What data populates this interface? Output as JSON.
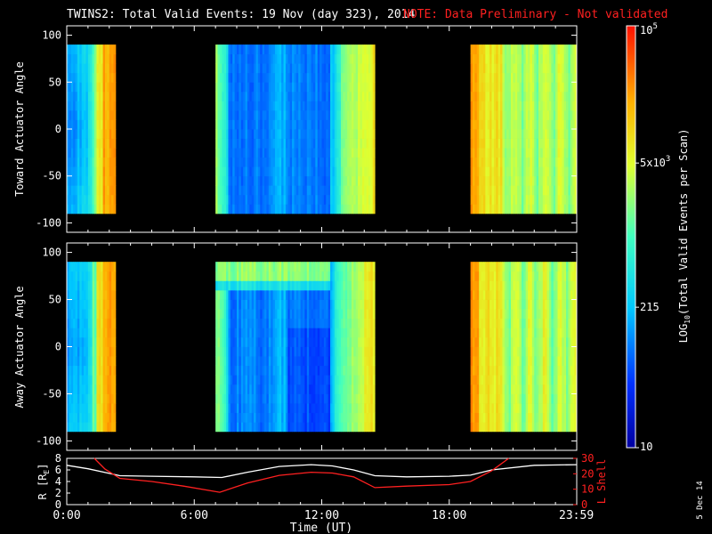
{
  "header": {
    "title": "TWINS2: Total Valid Events: 19 Nov (day 323), 2014",
    "note": "NOTE: Data Preliminary - Not validated",
    "note_color": "#ff2020"
  },
  "footer": {
    "date_stamp": "5 Dec 14"
  },
  "chart_data": [
    {
      "type": "heatmap",
      "name": "toward-panel",
      "ylabel": "Toward Actuator Angle",
      "ylim": [
        -110,
        110
      ],
      "yticks": [
        100,
        50,
        0,
        -50,
        -100
      ],
      "xlim": [
        0,
        24
      ],
      "data_angle_range": [
        -90,
        90
      ],
      "coverage_hours": [
        [
          0.0,
          2.3
        ],
        [
          7.0,
          14.5
        ],
        [
          19.0,
          24.0
        ]
      ],
      "background": "#000000"
    },
    {
      "type": "heatmap",
      "name": "away-panel",
      "ylabel": "Away Actuator Angle",
      "ylim": [
        -110,
        110
      ],
      "yticks": [
        100,
        50,
        0,
        -50,
        -100
      ],
      "xlim": [
        0,
        24
      ],
      "data_angle_range": [
        -90,
        90
      ],
      "coverage_hours": [
        [
          0.0,
          2.3
        ],
        [
          7.0,
          14.5
        ],
        [
          19.0,
          24.0
        ]
      ],
      "background": "#000000"
    },
    {
      "type": "line",
      "name": "orbit-panel",
      "ylabel_left": "R [R",
      "ylabel_left_sub": "E",
      "ylabel_left_close": "]",
      "ylabel_right": "L Shell",
      "ylim_left": [
        0,
        8
      ],
      "ylim_right": [
        0,
        30
      ],
      "yticks_left": [
        8,
        6,
        4,
        2,
        0
      ],
      "yticks_right": [
        30,
        20,
        10,
        0
      ],
      "xlabel": "Time (UT)",
      "xticks": [
        {
          "value": 0,
          "label": "0:00"
        },
        {
          "value": 6,
          "label": "6:00"
        },
        {
          "value": 12,
          "label": "12:00"
        },
        {
          "value": 18,
          "label": "18:00"
        },
        {
          "value": 23.983,
          "label": "23:59"
        }
      ],
      "series": [
        {
          "color": "#ffffff",
          "axis": "left",
          "x": [
            0,
            1,
            2,
            2.5,
            4,
            6,
            7.3,
            8.5,
            10,
            11.5,
            12.5,
            13.5,
            14.5,
            16,
            18,
            19,
            20,
            22,
            24
          ],
          "y": [
            6.8,
            6.2,
            5.4,
            5.0,
            4.9,
            4.8,
            4.7,
            5.6,
            6.6,
            6.9,
            6.7,
            6.0,
            5.0,
            4.8,
            4.9,
            5.1,
            6.0,
            6.8,
            6.9
          ]
        },
        {
          "color": "#ff2020",
          "axis": "right",
          "x": [
            1.3,
            1.8,
            2.5,
            4,
            5.5,
            7.2,
            8.5,
            10,
            11.5,
            12.5,
            13.5,
            14.5,
            16,
            18,
            19,
            20,
            20.8
          ],
          "y": [
            30,
            23,
            17,
            15,
            12,
            8,
            14,
            19,
            21,
            20.5,
            18,
            11,
            12,
            13,
            15,
            22,
            30
          ]
        }
      ]
    }
  ],
  "colorbar": {
    "label": "LOG",
    "label_sub": "10",
    "label_rest": "(Total Valid Events per Scan)",
    "ticks": [
      {
        "label": "10",
        "log": 1.0
      },
      {
        "label": "215",
        "log": 2.332
      },
      {
        "label": "5x10",
        "sup": "3",
        "log": 3.699
      },
      {
        "label": "10",
        "sup": "5",
        "log": 5.0
      }
    ],
    "log_range": [
      1.0,
      5.0
    ]
  }
}
